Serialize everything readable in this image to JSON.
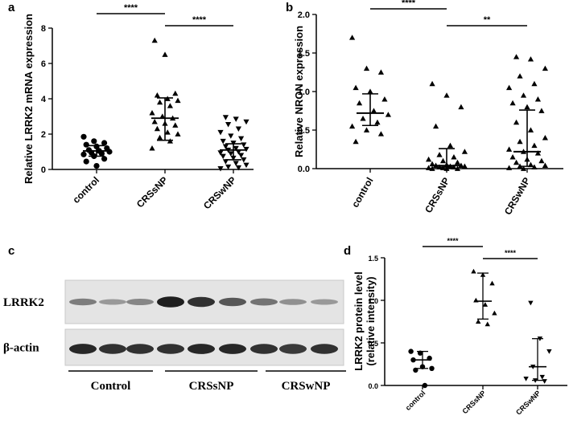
{
  "panels": {
    "a": "a",
    "b": "b",
    "c": "c",
    "d": "d"
  },
  "chart_data": [
    {
      "panel": "a",
      "type": "scatter",
      "ylabel": "Relative LRRK2 mRNA expression",
      "ylim": [
        0,
        8
      ],
      "yticks": [
        0,
        2,
        4,
        6,
        8
      ],
      "categories": [
        "control",
        "CRSsNP",
        "CRSwNP"
      ],
      "groups": [
        {
          "name": "control",
          "marker": "circle",
          "median": 1.05,
          "low": 0.75,
          "high": 1.35,
          "values": [
            1.85,
            1.6,
            1.5,
            1.4,
            1.3,
            1.2,
            1.1,
            1.05,
            1.0,
            0.95,
            0.9,
            0.85,
            0.75,
            0.6,
            0.45,
            0.2
          ]
        },
        {
          "name": "CRSsNP",
          "marker": "triangle",
          "median": 2.9,
          "low": 1.65,
          "high": 4.05,
          "values": [
            7.3,
            6.5,
            4.3,
            4.2,
            4.0,
            3.9,
            3.8,
            3.6,
            3.2,
            3.0,
            2.9,
            2.7,
            2.6,
            2.5,
            2.3,
            2.1,
            2.0,
            1.8,
            1.6,
            1.2
          ]
        },
        {
          "name": "CRSwNP",
          "marker": "triangle-down",
          "median": 1.1,
          "low": 0.55,
          "high": 1.45,
          "values": [
            2.95,
            2.85,
            2.7,
            2.55,
            2.3,
            2.1,
            1.9,
            1.75,
            1.6,
            1.5,
            1.4,
            1.3,
            1.2,
            1.15,
            1.1,
            1.0,
            0.95,
            0.9,
            0.8,
            0.75,
            0.65,
            0.55,
            0.45,
            0.35,
            0.25,
            0.15,
            0.1,
            0.05
          ]
        }
      ],
      "significance": [
        {
          "from": 0,
          "to": 1,
          "label": "****"
        },
        {
          "from": 1,
          "to": 2,
          "label": "****"
        }
      ]
    },
    {
      "panel": "b",
      "type": "scatter",
      "ylabel": "Relative NRON expression",
      "ylim": [
        0,
        2.0
      ],
      "yticks": [
        "0.0",
        "0.5",
        "1.0",
        "1.5",
        "2.0"
      ],
      "categories": [
        "control",
        "CRSsNP",
        "CRSwNP"
      ],
      "groups": [
        {
          "name": "control",
          "marker": "triangle",
          "median": 0.72,
          "low": 0.56,
          "high": 0.97,
          "values": [
            1.7,
            1.3,
            1.25,
            1.05,
            1.0,
            0.9,
            0.85,
            0.75,
            0.7,
            0.65,
            0.6,
            0.55,
            0.5,
            0.45,
            0.35
          ]
        },
        {
          "name": "CRSsNP",
          "marker": "triangle",
          "median": 0.04,
          "low": 0.02,
          "high": 0.26,
          "values": [
            1.1,
            0.95,
            0.8,
            0.55,
            0.3,
            0.22,
            0.18,
            0.15,
            0.12,
            0.1,
            0.08,
            0.06,
            0.05,
            0.04,
            0.04,
            0.03,
            0.03,
            0.02,
            0.02,
            0.01,
            0.01,
            0.0,
            0.0,
            0.0
          ]
        },
        {
          "name": "CRSwNP",
          "marker": "triangle",
          "median": 0.22,
          "low": 0.03,
          "high": 0.76,
          "values": [
            1.45,
            1.42,
            1.3,
            1.2,
            1.1,
            1.05,
            0.95,
            0.9,
            0.85,
            0.8,
            0.75,
            0.6,
            0.5,
            0.4,
            0.35,
            0.3,
            0.25,
            0.22,
            0.2,
            0.15,
            0.12,
            0.1,
            0.08,
            0.05,
            0.04,
            0.03,
            0.02,
            0.01,
            0.0
          ]
        }
      ],
      "significance": [
        {
          "from": 0,
          "to": 1,
          "label": "****"
        },
        {
          "from": 1,
          "to": 2,
          "label": "**"
        }
      ]
    },
    {
      "panel": "c",
      "type": "western_blot",
      "rows": [
        "LRRK2",
        "β-actin"
      ],
      "groups": [
        "Control",
        "CRSsNP",
        "CRSwNP"
      ],
      "lanes_per_group": 3,
      "band_intensity": {
        "LRRK2": [
          0.45,
          0.3,
          0.4,
          0.95,
          0.85,
          0.65,
          0.5,
          0.35,
          0.3
        ],
        "β-actin": [
          0.9,
          0.85,
          0.85,
          0.85,
          0.9,
          0.9,
          0.85,
          0.8,
          0.85
        ]
      }
    },
    {
      "panel": "d",
      "type": "scatter",
      "ylabel": "LRRK2 protein level (relative intensity)",
      "ylabel_lines": [
        "LRRK2 protein level",
        "(relative intensity)"
      ],
      "ylim": [
        0,
        1.5
      ],
      "yticks": [
        "0.0",
        "0.5",
        "1.0",
        "1.5"
      ],
      "categories": [
        "control",
        "CRSsNP",
        "CRSwNP"
      ],
      "groups": [
        {
          "name": "control",
          "marker": "circle",
          "median": 0.3,
          "low": 0.2,
          "high": 0.4,
          "values": [
            0.4,
            0.38,
            0.32,
            0.3,
            0.22,
            0.2,
            0.18,
            0.0
          ]
        },
        {
          "name": "CRSsNP",
          "marker": "triangle",
          "median": 0.99,
          "low": 0.78,
          "high": 1.32,
          "values": [
            1.34,
            1.3,
            1.2,
            1.0,
            0.95,
            0.85,
            0.75,
            0.72
          ]
        },
        {
          "name": "CRSwNP",
          "marker": "triangle-down",
          "median": 0.22,
          "low": 0.06,
          "high": 0.55,
          "values": [
            0.97,
            0.55,
            0.4,
            0.22,
            0.1,
            0.08,
            0.06,
            0.05
          ]
        }
      ],
      "significance": [
        {
          "from": 0,
          "to": 1,
          "label": "****"
        },
        {
          "from": 1,
          "to": 2,
          "label": "****"
        }
      ]
    }
  ]
}
